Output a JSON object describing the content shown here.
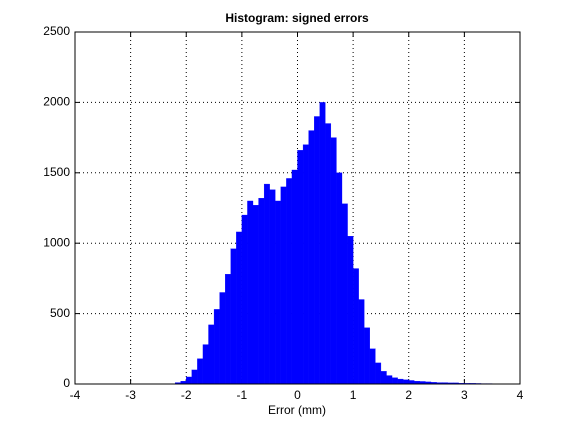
{
  "chart_data": {
    "type": "histogram",
    "title": "Histogram: signed errors",
    "x_label": "Error (mm)",
    "bins": [
      -2.3,
      -2.2,
      -2.1,
      -2.0,
      -1.9,
      -1.8,
      -1.7,
      -1.6,
      -1.5,
      -1.4,
      -1.3,
      -1.2,
      -1.1,
      -1.0,
      -0.9,
      -0.8,
      -0.7,
      -0.6,
      -0.5,
      -0.4,
      -0.3,
      -0.2,
      -0.1,
      0.0,
      0.1,
      0.2,
      0.3,
      0.4,
      0.5,
      0.6,
      0.7,
      0.8,
      0.9,
      1.0,
      1.1,
      1.2,
      1.3,
      1.4,
      1.5,
      1.6,
      1.7,
      1.8,
      1.9,
      2.0,
      2.1,
      2.2,
      2.3,
      2.4,
      2.5,
      2.6,
      2.7,
      2.8,
      2.9,
      3.0,
      3.1,
      3.2,
      3.3,
      3.4,
      3.5
    ],
    "values": [
      2,
      10,
      20,
      50,
      100,
      180,
      280,
      420,
      530,
      650,
      780,
      960,
      1080,
      1200,
      1300,
      1270,
      1320,
      1420,
      1380,
      1300,
      1400,
      1460,
      1520,
      1660,
      1700,
      1800,
      1900,
      2000,
      1850,
      1750,
      1500,
      1280,
      1050,
      820,
      600,
      400,
      250,
      150,
      90,
      60,
      45,
      35,
      30,
      25,
      20,
      18,
      15,
      12,
      10,
      10,
      8,
      8,
      6,
      5,
      5,
      4,
      3,
      3
    ],
    "color": "#0000ff",
    "xlim": [
      -4,
      4
    ],
    "xticks": [
      -4,
      -3,
      -2,
      -1,
      0,
      1,
      2,
      3,
      4
    ],
    "ylim": [
      0,
      2500
    ],
    "yticks": [
      0,
      500,
      1000,
      1500,
      2000,
      2500
    ],
    "grid": true
  }
}
